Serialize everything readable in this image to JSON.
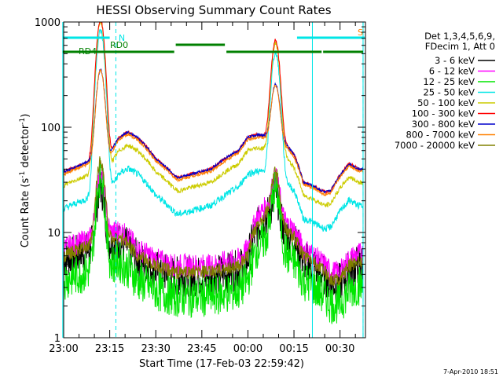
{
  "chart_data": {
    "type": "line",
    "title": "HESSI Observing Summary Count Rates",
    "xlabel": "Start Time (17-Feb-03 22:59:42)",
    "ylabel_base": "Count Rate (s",
    "ylabel_mid": " detector",
    "ylabel_end": ")",
    "ylabel_exp": "-1",
    "yscale": "log",
    "ylim": [
      1,
      1000
    ],
    "xlim": [
      "22:59:42",
      "00:38:00"
    ],
    "yticks": [
      "1",
      "10",
      "100",
      "1000"
    ],
    "xticks": [
      "23:00",
      "23:15",
      "23:30",
      "23:45",
      "00:00",
      "00:15",
      "00:30"
    ],
    "footer": "7-Apr-2010 18:51",
    "legend_title": [
      "Det 1,3,4,5,6,9,",
      "FDecim 1, Att 0"
    ],
    "series": [
      {
        "name": "3 - 6 keV",
        "color": "#000000"
      },
      {
        "name": "6 - 12 keV",
        "color": "#ff00ff"
      },
      {
        "name": "12 - 25 keV",
        "color": "#00e600"
      },
      {
        "name": "25 - 50 keV",
        "color": "#00e6e6"
      },
      {
        "name": "50 - 100 keV",
        "color": "#cccc00"
      },
      {
        "name": "100 - 300 keV",
        "color": "#ff0000"
      },
      {
        "name": "300 - 800 keV",
        "color": "#0000cc"
      },
      {
        "name": "800 - 7000 keV",
        "color": "#ff8000"
      },
      {
        "name": "7000 - 20000 keV",
        "color": "#808000"
      }
    ],
    "annotations": [
      {
        "text": "N",
        "color": "#00e6e6"
      },
      {
        "text": "S",
        "color": "#ff8000"
      },
      {
        "text": "RD0",
        "color": "#008000"
      },
      {
        "text": "RD4",
        "color": "#008000"
      }
    ],
    "events": {
      "saa_bars": [
        [
          "22:59:42",
          "23:15:00"
        ],
        [
          "00:16:00",
          "00:38:00"
        ]
      ],
      "rd0_bars": [
        [
          "23:36:30",
          "23:52:30"
        ]
      ],
      "rd4_bars": [
        [
          "22:59:42",
          "23:36:00"
        ],
        [
          "23:53:00",
          "00:24:00"
        ],
        [
          "00:24:30",
          "00:37:30"
        ]
      ],
      "night_lines": [
        "22:59:42",
        "00:21:00",
        "00:37:30"
      ],
      "dashed_lines": [
        "23:17:00",
        "00:37:30"
      ]
    },
    "profiles": {
      "time_h": [
        -0.005,
        0.25,
        0.3,
        0.35,
        0.4,
        0.5,
        0.6,
        0.62,
        0.8,
        0.95,
        1.0,
        1.05,
        1.1,
        1.2,
        1.25,
        1.28,
        1.3,
        1.35,
        1.38,
        1.42,
        1.45,
        1.5,
        1.55,
        1.6
      ],
      "slow_high": [
        37,
        55,
        80,
        90,
        80,
        50,
        35,
        33,
        40,
        60,
        80,
        85,
        82,
        70,
        55,
        40,
        30,
        28,
        26,
        24,
        25,
        35,
        45,
        40
      ],
      "slow_low": [
        10,
        14,
        15,
        13,
        10,
        8,
        7,
        7,
        7,
        8,
        10,
        20,
        25,
        18,
        15,
        12,
        10,
        9,
        8,
        7,
        6,
        6,
        8,
        9
      ]
    },
    "spikes": [
      {
        "time": "23:12:00",
        "peak": 1000
      },
      {
        "time": "00:09:00",
        "peak": 600
      }
    ]
  }
}
